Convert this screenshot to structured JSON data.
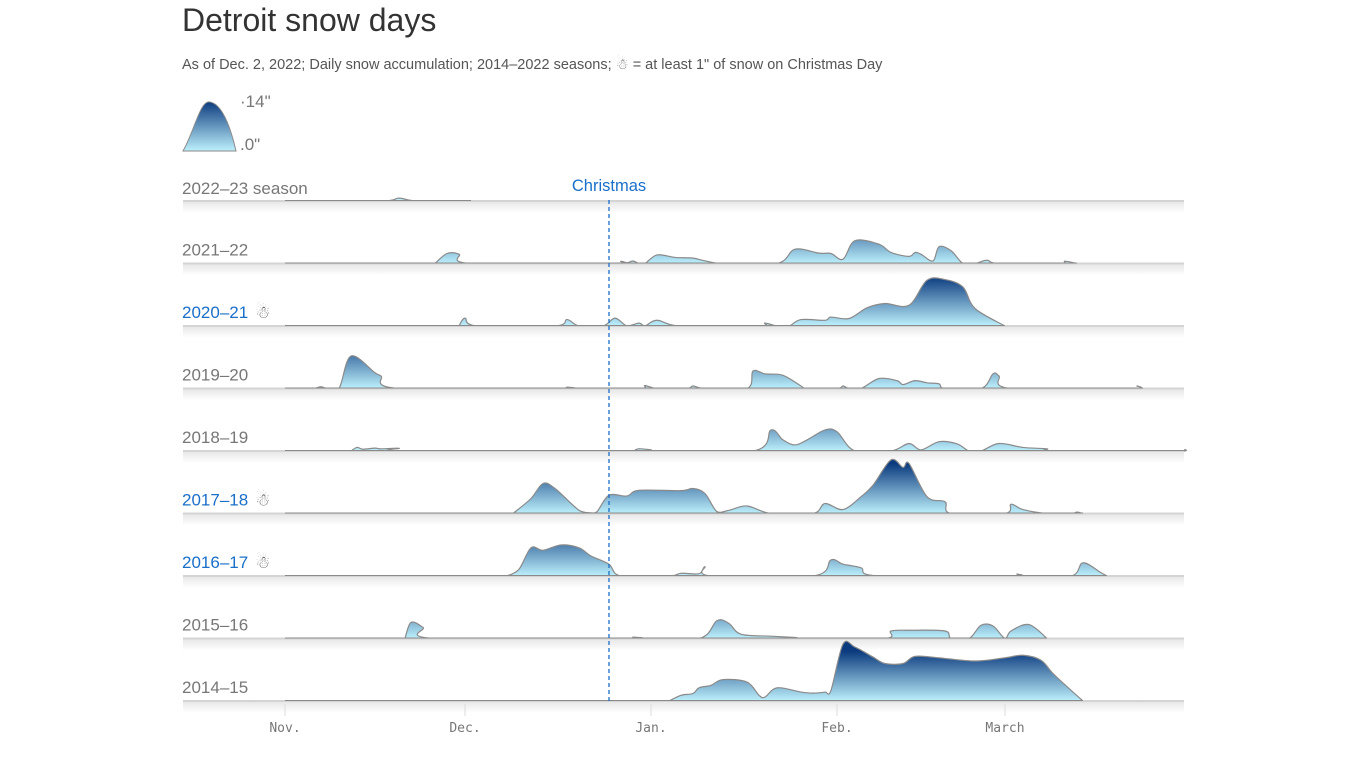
{
  "title": "Detroit snow days",
  "subtitle_before": "As of Dec. 2, 2022; Daily snow accumulation; 2014–2022 seasons;",
  "subtitle_icon": "snowman-icon",
  "subtitle_after": "= at least 1\" of snow on Christmas Day",
  "chart_data": {
    "type": "area",
    "subtype": "ridgeline",
    "legend": {
      "max_label": "14\"",
      "min_label": "0\"",
      "max": 14,
      "min": 0
    },
    "annotation": {
      "label": "Christmas",
      "date": "Dec 25"
    },
    "x_ticks": [
      {
        "label": "Nov.",
        "date": "Nov 1"
      },
      {
        "label": "Dec.",
        "date": "Dec 1"
      },
      {
        "label": "Jan.",
        "date": "Jan 1"
      },
      {
        "label": "Feb.",
        "date": "Feb 1"
      },
      {
        "label": "March",
        "date": "Mar 1"
      }
    ],
    "xlim": [
      "Oct 15",
      "Mar 31"
    ],
    "ylabel_unit": "inches",
    "colors": {
      "low": "#bdf0fc",
      "high": "#0b3a7e",
      "highlight": "#1a6fc9",
      "outline": "#8a8a8a"
    },
    "series": [
      {
        "name": "2022–23 season",
        "christmas_snow": false,
        "points": [
          [
            "Nov 1",
            0
          ],
          [
            "Nov 17",
            0
          ],
          [
            "Nov 20",
            0.8
          ],
          [
            "Nov 23",
            0
          ],
          [
            "Dec 2",
            0
          ]
        ]
      },
      {
        "name": "2021–22",
        "christmas_snow": false,
        "points": [
          [
            "Nov 26",
            0
          ],
          [
            "Nov 28",
            2.8
          ],
          [
            "Nov 30",
            2.6
          ],
          [
            "Dec 2",
            0
          ],
          [
            "Dec 25",
            0
          ],
          [
            "Dec 27",
            0.6
          ],
          [
            "Dec 28",
            0.2
          ],
          [
            "Dec 29",
            0.7
          ],
          [
            "Dec 30",
            0
          ],
          [
            "Dec 31",
            0
          ],
          [
            "Jan 2",
            2.4
          ],
          [
            "Jan 5",
            1.7
          ],
          [
            "Jan 8",
            1.5
          ],
          [
            "Jan 10",
            0.75
          ],
          [
            "Jan 13",
            0
          ],
          [
            "Jan 22",
            0
          ],
          [
            "Jan 25",
            4.0
          ],
          [
            "Jan 29",
            2.9
          ],
          [
            "Jan 31",
            2.8
          ],
          [
            "Feb 2",
            1.2
          ],
          [
            "Feb 4",
            6.4
          ],
          [
            "Feb 8",
            5.4
          ],
          [
            "Feb 10",
            3.1
          ],
          [
            "Feb 13",
            2.0
          ],
          [
            "Feb 14",
            3.1
          ],
          [
            "Feb 15",
            2.6
          ],
          [
            "Feb 17",
            0.7
          ],
          [
            "Feb 18",
            4.7
          ],
          [
            "Feb 20",
            3.6
          ],
          [
            "Feb 22",
            0
          ],
          [
            "Feb 24",
            0
          ],
          [
            "Feb 26",
            0.9
          ],
          [
            "Feb 28",
            0
          ],
          [
            "Mar 10",
            0
          ],
          [
            "Mar 11",
            0.65
          ],
          [
            "Mar 13",
            0
          ]
        ]
      },
      {
        "name": "2020–21",
        "christmas_snow": true,
        "points": [
          [
            "Nov 30",
            0
          ],
          [
            "Dec 1",
            2.2
          ],
          [
            "Dec 3",
            0
          ],
          [
            "Dec 16",
            0
          ],
          [
            "Dec 18",
            1.8
          ],
          [
            "Dec 20",
            0
          ],
          [
            "Dec 24",
            0
          ],
          [
            "Dec 26",
            2.2
          ],
          [
            "Dec 28",
            0
          ],
          [
            "Dec 30",
            0.8
          ],
          [
            "Dec 31",
            0
          ],
          [
            "Jan 2",
            1.6
          ],
          [
            "Jan 6",
            0
          ],
          [
            "Jan 19",
            0
          ],
          [
            "Jan 20",
            0.8
          ],
          [
            "Jan 22",
            0
          ],
          [
            "Jan 24",
            0
          ],
          [
            "Jan 26",
            1.8
          ],
          [
            "Jan 30",
            1.6
          ],
          [
            "Jan 31",
            2.5
          ],
          [
            "Feb 3",
            2.1
          ],
          [
            "Feb 6",
            5.1
          ],
          [
            "Feb 9",
            6.3
          ],
          [
            "Feb 13",
            5.8
          ],
          [
            "Feb 16",
            12.8
          ],
          [
            "Feb 19",
            13.0
          ],
          [
            "Feb 22",
            10.9
          ],
          [
            "Feb 24",
            4.9
          ],
          [
            "Mar 1",
            0
          ]
        ]
      },
      {
        "name": "2019–20",
        "christmas_snow": false,
        "points": [
          [
            "Nov 6",
            0
          ],
          [
            "Nov 7",
            0.5
          ],
          [
            "Nov 8",
            0
          ],
          [
            "Nov 10",
            0
          ],
          [
            "Nov 12",
            9.1
          ],
          [
            "Nov 16",
            4.4
          ],
          [
            "Nov 17",
            3.5
          ],
          [
            "Nov 20",
            0
          ],
          [
            "Dec 17",
            0
          ],
          [
            "Dec 18",
            0.4
          ],
          [
            "Dec 19",
            0
          ],
          [
            "Dec 30",
            0
          ],
          [
            "Dec 31",
            0.8
          ],
          [
            "Jan 2",
            0
          ],
          [
            "Jan 7",
            0
          ],
          [
            "Jan 8",
            0.7
          ],
          [
            "Jan 10",
            0
          ],
          [
            "Jan 17",
            0
          ],
          [
            "Jan 18",
            4.9
          ],
          [
            "Jan 20",
            4.1
          ],
          [
            "Jan 23",
            3.7
          ],
          [
            "Jan 26",
            0.7
          ],
          [
            "Jan 27",
            0
          ],
          [
            "Feb 1",
            0
          ],
          [
            "Feb 2",
            0.7
          ],
          [
            "Feb 3",
            0
          ],
          [
            "Feb 5",
            0
          ],
          [
            "Feb 8",
            2.8
          ],
          [
            "Feb 11",
            2.2
          ],
          [
            "Feb 12",
            1.1
          ],
          [
            "Feb 14",
            2.2
          ],
          [
            "Feb 16",
            1.6
          ],
          [
            "Feb 18",
            1.3
          ],
          [
            "Feb 19",
            0
          ],
          [
            "Feb 25",
            0
          ],
          [
            "Feb 27",
            4.1
          ],
          [
            "Feb 28",
            3.5
          ],
          [
            "Mar 2",
            0
          ],
          [
            "Mar 22",
            0
          ],
          [
            "Mar 23",
            0.7
          ],
          [
            "Mar 24",
            0
          ]
        ]
      },
      {
        "name": "2018–19",
        "christmas_snow": false,
        "points": [
          [
            "Nov 12",
            0
          ],
          [
            "Nov 13",
            1.0
          ],
          [
            "Nov 14",
            0.5
          ],
          [
            "Nov 16",
            0.8
          ],
          [
            "Nov 17",
            0.6
          ],
          [
            "Nov 20",
            0.75
          ],
          [
            "Nov 21",
            0
          ],
          [
            "Dec 29",
            0
          ],
          [
            "Dec 30",
            0.65
          ],
          [
            "Dec 31",
            0
          ],
          [
            "Jan 18",
            0
          ],
          [
            "Jan 21",
            5.9
          ],
          [
            "Jan 23",
            3.1
          ],
          [
            "Jan 25",
            1.7
          ],
          [
            "Jan 27",
            3.1
          ],
          [
            "Jan 30",
            5.9
          ],
          [
            "Feb 1",
            5.4
          ],
          [
            "Feb 4",
            0
          ],
          [
            "Feb 10",
            0
          ],
          [
            "Feb 13",
            2.1
          ],
          [
            "Feb 15",
            0.3
          ],
          [
            "Feb 18",
            2.6
          ],
          [
            "Feb 21",
            2.0
          ],
          [
            "Feb 23",
            0
          ],
          [
            "Feb 25",
            0
          ],
          [
            "Feb 28",
            2.1
          ],
          [
            "Mar 4",
            1.0
          ],
          [
            "Mar 8",
            0.6
          ],
          [
            "Mar 9",
            0
          ],
          [
            "Mar 29",
            0
          ],
          [
            "Mar 31",
            0.4
          ]
        ]
      },
      {
        "name": "2017–18",
        "christmas_snow": true,
        "points": [
          [
            "Dec 9",
            0
          ],
          [
            "Dec 12",
            4.2
          ],
          [
            "Dec 14",
            8.4
          ],
          [
            "Dec 16",
            7.0
          ],
          [
            "Dec 20",
            0.9
          ],
          [
            "Dec 22",
            0.2
          ],
          [
            "Dec 23",
            0.5
          ],
          [
            "Dec 25",
            5.1
          ],
          [
            "Dec 28",
            4.9
          ],
          [
            "Dec 30",
            6.5
          ],
          [
            "Jan 6",
            6.4
          ],
          [
            "Jan 8",
            7.0
          ],
          [
            "Jan 10",
            5.6
          ],
          [
            "Jan 12",
            0.5
          ],
          [
            "Jan 14",
            0.9
          ],
          [
            "Jan 17",
            2.1
          ],
          [
            "Jan 21",
            0
          ],
          [
            "Jan 28",
            0
          ],
          [
            "Jan 30",
            2.8
          ],
          [
            "Feb 2",
            1.1
          ],
          [
            "Feb 5",
            4.7
          ],
          [
            "Feb 7",
            7.9
          ],
          [
            "Feb 10",
            15.0
          ],
          [
            "Feb 12",
            12.9
          ],
          [
            "Feb 13",
            14.0
          ],
          [
            "Feb 16",
            4.7
          ],
          [
            "Feb 19",
            3.3
          ],
          [
            "Feb 20",
            0
          ],
          [
            "Mar 1",
            0
          ],
          [
            "Mar 2",
            2.6
          ],
          [
            "Mar 4",
            1.1
          ],
          [
            "Mar 8",
            0
          ],
          [
            "Mar 12",
            0
          ],
          [
            "Mar 13",
            0.4
          ],
          [
            "Mar 14",
            0
          ]
        ]
      },
      {
        "name": "2016–17",
        "christmas_snow": true,
        "points": [
          [
            "Dec 8",
            0
          ],
          [
            "Dec 10",
            1.9
          ],
          [
            "Dec 12",
            7.9
          ],
          [
            "Dec 14",
            7.2
          ],
          [
            "Dec 17",
            8.7
          ],
          [
            "Dec 20",
            7.9
          ],
          [
            "Dec 22",
            5.6
          ],
          [
            "Dec 25",
            3.3
          ],
          [
            "Dec 27",
            0
          ],
          [
            "Jan 4",
            0
          ],
          [
            "Jan 6",
            0.75
          ],
          [
            "Jan 9",
            0.65
          ],
          [
            "Jan 10",
            2.6
          ],
          [
            "Jan 11",
            0
          ],
          [
            "Jan 28",
            0
          ],
          [
            "Jan 31",
            4.5
          ],
          [
            "Feb 2",
            3.3
          ],
          [
            "Feb 5",
            2.3
          ],
          [
            "Feb 8",
            0
          ],
          [
            "Mar 2",
            0
          ],
          [
            "Mar 3",
            0.55
          ],
          [
            "Mar 4",
            0
          ],
          [
            "Mar 12",
            0
          ],
          [
            "Mar 14",
            3.7
          ],
          [
            "Mar 17",
            0.9
          ],
          [
            "Mar 18",
            0
          ]
        ]
      },
      {
        "name": "2015–16",
        "christmas_snow": false,
        "points": [
          [
            "Nov 21",
            0
          ],
          [
            "Nov 22",
            4.5
          ],
          [
            "Nov 24",
            3.1
          ],
          [
            "Nov 26",
            0
          ],
          [
            "Dec 28",
            0
          ],
          [
            "Dec 29",
            0.4
          ],
          [
            "Dec 30",
            0
          ],
          [
            "Jan 9",
            0
          ],
          [
            "Jan 12",
            5.0
          ],
          [
            "Jan 14",
            4.2
          ],
          [
            "Jan 16",
            1.2
          ],
          [
            "Jan 21",
            0.65
          ],
          [
            "Jan 25",
            0.3
          ],
          [
            "Jan 27",
            0
          ],
          [
            "Feb 9",
            0
          ],
          [
            "Feb 10",
            2.1
          ],
          [
            "Feb 13",
            2.3
          ],
          [
            "Feb 19",
            2.1
          ],
          [
            "Feb 20",
            0
          ],
          [
            "Feb 23",
            0
          ],
          [
            "Feb 25",
            3.7
          ],
          [
            "Feb 27",
            3.5
          ],
          [
            "Mar 1",
            0
          ],
          [
            "Mar 2",
            2.1
          ],
          [
            "Mar 5",
            3.9
          ],
          [
            "Mar 8",
            0
          ]
        ]
      },
      {
        "name": "2014–15",
        "christmas_snow": false,
        "points": [
          [
            "Jan 4",
            0
          ],
          [
            "Jan 6",
            1.6
          ],
          [
            "Jan 8",
            2.1
          ],
          [
            "Jan 9",
            3.7
          ],
          [
            "Jan 11",
            4.4
          ],
          [
            "Jan 13",
            6.0
          ],
          [
            "Jan 17",
            5.3
          ],
          [
            "Jan 19",
            1.6
          ],
          [
            "Jan 20",
            1.1
          ],
          [
            "Jan 22",
            3.7
          ],
          [
            "Jan 26",
            2.5
          ],
          [
            "Jan 28",
            2.2
          ],
          [
            "Jan 30",
            2.5
          ],
          [
            "Jan 31",
            3.0
          ],
          [
            "Feb 2",
            15.9
          ],
          [
            "Feb 4",
            15.1
          ],
          [
            "Feb 7",
            12.3
          ],
          [
            "Feb 9",
            10.5
          ],
          [
            "Feb 12",
            10.5
          ],
          [
            "Feb 14",
            12.5
          ],
          [
            "Feb 18",
            12.1
          ],
          [
            "Feb 24",
            11.2
          ],
          [
            "Mar 1",
            12.1
          ],
          [
            "Mar 4",
            12.8
          ],
          [
            "Mar 7",
            11.4
          ],
          [
            "Mar 9",
            7.7
          ],
          [
            "Mar 12",
            3.0
          ],
          [
            "Mar 14",
            0
          ]
        ]
      }
    ]
  }
}
